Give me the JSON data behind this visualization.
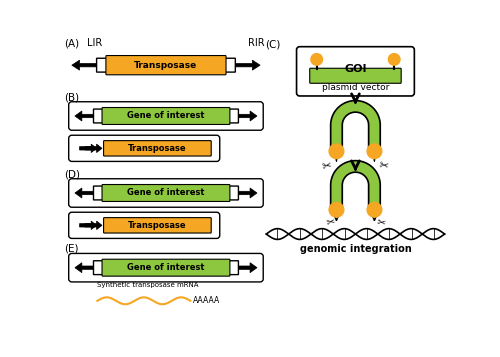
{
  "orange_color": "#F5A623",
  "green_color": "#8DC63F",
  "black_color": "#000000",
  "white_color": "#FFFFFF",
  "bg_color": "#FFFFFF",
  "label_A": "(A)",
  "label_B": "(B)",
  "label_C": "(C)",
  "label_D": "(D)",
  "label_E": "(E)",
  "text_LIR": "LIR",
  "text_RIR": "RIR",
  "text_transposase": "Transposase",
  "text_gene_of_interest": "Gene of interest",
  "text_GOI": "GOI",
  "text_plasmid_vector": "plasmid vector",
  "text_genomic_integration": "genomic integration",
  "text_synthetic_mrna": "Synthetic transposase mRNA",
  "text_aaaaa": "AAAAA",
  "fig_width": 5.0,
  "fig_height": 3.57,
  "dpi": 100
}
